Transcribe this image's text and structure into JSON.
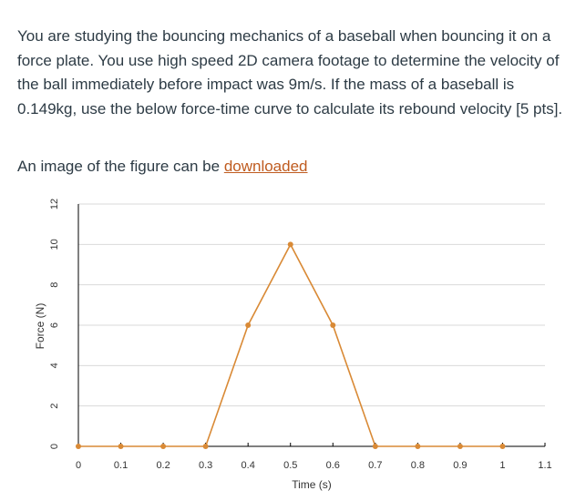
{
  "question": {
    "text": "You are studying the bouncing mechanics of a baseball when bouncing it on a force plate. You use high speed 2D camera footage to determine the velocity of the ball immediately before impact was 9m/s. If the mass of a baseball is 0.149kg, use the below force-time curve to calculate its rebound velocity [5 pts]."
  },
  "download": {
    "prefix": "An image of the figure can be ",
    "link_label": "downloaded"
  },
  "chart_data": {
    "type": "line",
    "title": "",
    "xlabel": "Time (s)",
    "ylabel": "Force (N)",
    "xlim": [
      0,
      1.1
    ],
    "ylim": [
      0,
      12
    ],
    "grid": true,
    "x_ticks": [
      0,
      0.1,
      0.2,
      0.3,
      0.4,
      0.5,
      0.6,
      0.7,
      0.8,
      0.9,
      1,
      1.1
    ],
    "y_ticks": [
      0,
      2,
      4,
      6,
      8,
      10,
      12
    ],
    "series": [
      {
        "color": "#d98a36",
        "x": [
          0,
          0.1,
          0.2,
          0.3,
          0.4,
          0.5,
          0.6,
          0.7,
          0.8,
          0.9,
          1.0
        ],
        "y": [
          0,
          0,
          0,
          0,
          6,
          10,
          6,
          0,
          0,
          0,
          0
        ]
      }
    ]
  }
}
